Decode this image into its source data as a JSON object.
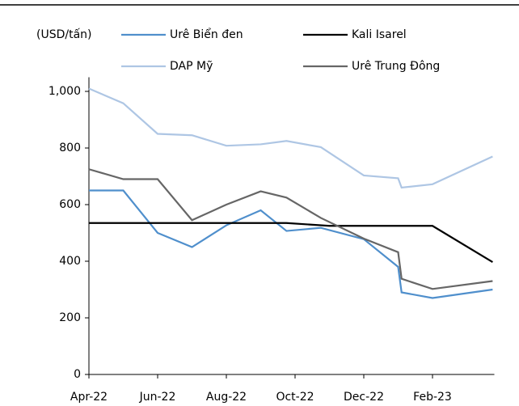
{
  "chart_data": {
    "type": "line",
    "unit_label": "(USD/tấn)",
    "xlim": [
      0,
      11.8
    ],
    "xticks": [
      {
        "value": 0,
        "label": "Apr-22"
      },
      {
        "value": 2,
        "label": "Jun-22"
      },
      {
        "value": 4,
        "label": "Aug-22"
      },
      {
        "value": 6,
        "label": "Oct-22"
      },
      {
        "value": 8,
        "label": "Dec-22"
      },
      {
        "value": 10,
        "label": "Feb-23"
      }
    ],
    "ylim": [
      0,
      1050
    ],
    "yticks": [
      0,
      200,
      400,
      600,
      800,
      {
        "value": 1000,
        "label": "1,000"
      }
    ],
    "series": [
      {
        "name": "Urê Biển đen",
        "color": "#4f8fcc",
        "x": [
          0,
          1,
          2,
          3,
          4,
          5,
          5.75,
          6.75,
          8,
          9,
          9.1,
          10,
          11.75
        ],
        "values": [
          650,
          650,
          500,
          450,
          527,
          580,
          507,
          518,
          478,
          380,
          290,
          270,
          300
        ]
      },
      {
        "name": "Kali Isarel",
        "color": "#000000",
        "x": [
          0,
          5.75,
          7,
          10,
          11.75
        ],
        "values": [
          535,
          535,
          525,
          525,
          397
        ]
      },
      {
        "name": "DAP Mỹ",
        "color": "#aec6e4",
        "x": [
          0,
          1,
          2,
          3,
          4,
          5,
          5.75,
          6.75,
          8,
          9,
          9.1,
          10,
          11.75
        ],
        "values": [
          1010,
          958,
          850,
          845,
          808,
          813,
          825,
          803,
          703,
          693,
          660,
          672,
          770
        ]
      },
      {
        "name": "Urê Trung Đông",
        "color": "#666666",
        "x": [
          0,
          1,
          2,
          3,
          4,
          5,
          5.75,
          6.75,
          8,
          9,
          9.1,
          10,
          11.75
        ],
        "values": [
          725,
          690,
          690,
          545,
          600,
          647,
          625,
          553,
          480,
          432,
          338,
          302,
          330
        ]
      }
    ]
  }
}
